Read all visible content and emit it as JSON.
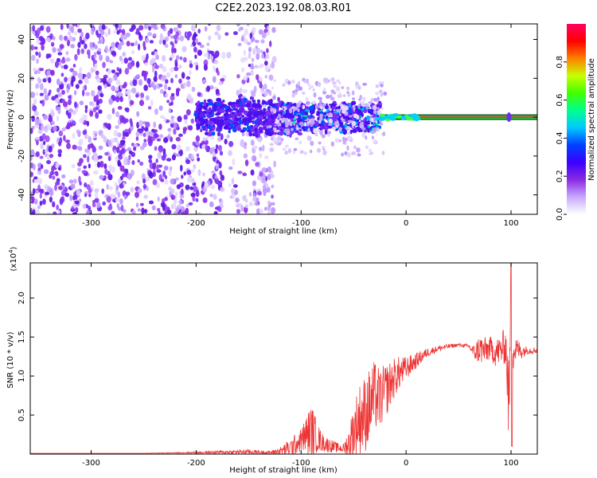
{
  "title": "C2E2.2023.192.08.03.R01",
  "chart_data": [
    {
      "type": "heatmap",
      "xlabel": "Height of straight line (km)",
      "ylabel": "Frequency (Hz)",
      "xlim": [
        -358,
        125
      ],
      "ylim": [
        -50,
        48
      ],
      "xticks": [
        "-300",
        "-200",
        "-100",
        "0",
        "100"
      ],
      "xtick_values": [
        -300,
        -200,
        -100,
        0,
        100
      ],
      "yticks": [
        "-40",
        "-20",
        "0",
        "20",
        "40"
      ],
      "ytick_values": [
        -40,
        -20,
        0,
        20,
        40
      ],
      "colorbar": {
        "label": "Normalized spectral amplitude",
        "ticks": [
          "0.0",
          "0.2",
          "0.4",
          "0.6",
          "0.8"
        ],
        "tick_values": [
          0.0,
          0.2,
          0.4,
          0.6,
          0.8
        ],
        "range": [
          0,
          1
        ],
        "colors": [
          "#ffffff",
          "#c8a8ff",
          "#8a2be2",
          "#3b00ff",
          "#0040ff",
          "#00c8ff",
          "#00ff90",
          "#40ff00",
          "#c8ff00",
          "#ff8000",
          "#ff0000",
          "#ff0060"
        ]
      },
      "regions": [
        {
          "x": [
            -358,
            -175
          ],
          "freq_spread": 48,
          "intensity": "scattered noise"
        },
        {
          "x": [
            -175,
            -120
          ],
          "freq_spread": 48,
          "intensity": "sparse noise"
        },
        {
          "x": [
            -200,
            -25
          ],
          "freq_spread": 12,
          "intensity": "medium"
        },
        {
          "x": [
            -25,
            125
          ],
          "freq": 0,
          "intensity": "strong narrow line"
        }
      ]
    },
    {
      "type": "line",
      "xlabel": "Height of straight line (km)",
      "ylabel": "SNR (10 * v/v)",
      "multiplier_label": "(x10",
      "multiplier_exp": "4",
      "xlim": [
        -358,
        125
      ],
      "ylim": [
        0,
        2.45
      ],
      "xticks": [
        "-300",
        "-200",
        "-100",
        "0",
        "100"
      ],
      "xtick_values": [
        -300,
        -200,
        -100,
        0,
        100
      ],
      "yticks": [
        "0.5",
        "1.0",
        "1.5",
        "2.0"
      ],
      "ytick_values": [
        0.5,
        1.0,
        1.5,
        2.0
      ],
      "series": [
        {
          "color": "#ee3333",
          "x": [
            -358,
            -250,
            -200,
            -150,
            -130,
            -120,
            -110,
            -100,
            -95,
            -90,
            -85,
            -80,
            -75,
            -70,
            -65,
            -60,
            -55,
            -50,
            -45,
            -40,
            -35,
            -30,
            -25,
            -20,
            -15,
            -10,
            -5,
            0,
            10,
            20,
            30,
            40,
            50,
            60,
            65,
            70,
            75,
            80,
            85,
            90,
            95,
            98,
            100,
            102,
            105,
            110,
            115,
            125
          ],
          "y": [
            0.01,
            0.01,
            0.02,
            0.03,
            0.02,
            0.04,
            0.08,
            0.18,
            0.25,
            0.3,
            0.22,
            0.15,
            0.12,
            0.1,
            0.08,
            0.07,
            0.12,
            0.3,
            0.45,
            0.5,
            0.6,
            0.75,
            0.7,
            0.8,
            0.9,
            1.0,
            1.05,
            1.1,
            1.2,
            1.3,
            1.35,
            1.38,
            1.4,
            1.38,
            1.3,
            1.35,
            1.32,
            1.36,
            1.3,
            1.33,
            1.4,
            0.6,
            1.8,
            1.3,
            1.35,
            1.32,
            1.33,
            1.33
          ],
          "noise": [
            0.0,
            0.0,
            0.01,
            0.03,
            0.02,
            0.05,
            0.12,
            0.15,
            0.25,
            0.35,
            0.2,
            0.12,
            0.1,
            0.08,
            0.06,
            0.05,
            0.2,
            0.35,
            0.45,
            0.5,
            0.5,
            0.45,
            0.4,
            0.35,
            0.3,
            0.25,
            0.2,
            0.15,
            0.1,
            0.06,
            0.04,
            0.03,
            0.02,
            0.03,
            0.1,
            0.2,
            0.18,
            0.15,
            0.18,
            0.2,
            0.25,
            0.6,
            0.6,
            0.25,
            0.15,
            0.1,
            0.05,
            0.04
          ]
        }
      ]
    }
  ]
}
